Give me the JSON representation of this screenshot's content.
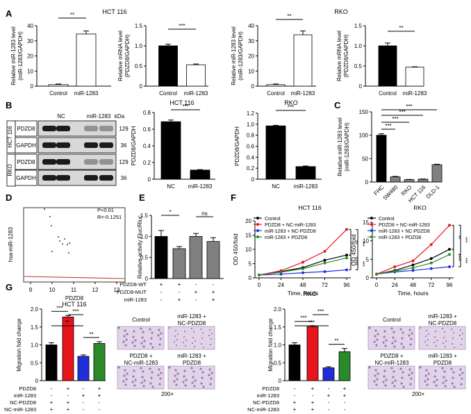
{
  "panel_letters": [
    "A",
    "B",
    "C",
    "D",
    "E",
    "F",
    "G"
  ],
  "colors": {
    "bar_black": "#000000",
    "bar_white": "#ffffff",
    "bar_gray": "#808080",
    "bar_red": "#e8141c",
    "bar_blue": "#1f2fdc",
    "bar_green": "#2a8a2a",
    "line_black": "#000000",
    "line_red": "#e8141c",
    "line_blue": "#1f2fdc",
    "line_green": "#2a8a2a",
    "image_purple": "#6a3f8f"
  },
  "chart_data": [
    {
      "id": "A1",
      "type": "bar",
      "title": "HCT 116",
      "categories": [
        "Control",
        "miR-1283"
      ],
      "values": [
        1.0,
        34.5
      ],
      "errors": [
        0.4,
        2.0
      ],
      "ylabel": "Relative miR-1283 level (miR-1283/GAPDH)",
      "ylim": [
        0,
        40
      ],
      "yticks": [
        "0",
        "10",
        "20",
        "30",
        "40"
      ],
      "fills": [
        "white",
        "white"
      ],
      "sig": [
        "**"
      ]
    },
    {
      "id": "A2",
      "type": "bar",
      "categories": [
        "Control",
        "miR-1283"
      ],
      "values": [
        1.0,
        0.53
      ],
      "errors": [
        0.04,
        0.02
      ],
      "ylabel": "Relative mRNA level (PDZD8/GAPDH)",
      "ylim": [
        0,
        1.5
      ],
      "yticks": [
        "0",
        "0.5",
        "1.0",
        "1.5"
      ],
      "fills": [
        "black",
        "white"
      ],
      "sig": [
        "***"
      ]
    },
    {
      "id": "A3",
      "type": "bar",
      "title": "RKO",
      "categories": [
        "Control",
        "miR-1283"
      ],
      "values": [
        1.0,
        34.0
      ],
      "errors": [
        0.4,
        2.5
      ],
      "ylabel": "Relative miR-1283 level (miR-1283/GAPDH)",
      "ylim": [
        0,
        40
      ],
      "yticks": [
        "0",
        "10",
        "20",
        "30",
        "40"
      ],
      "fills": [
        "white",
        "white"
      ],
      "sig": [
        "**"
      ]
    },
    {
      "id": "A4",
      "type": "bar",
      "categories": [
        "Control",
        "miR-1283"
      ],
      "values": [
        1.0,
        0.47
      ],
      "errors": [
        0.07,
        0.01
      ],
      "ylabel": "Relative mRNA level (PDZD8/GAPDH)",
      "ylim": [
        0,
        1.5
      ],
      "yticks": [
        "0",
        "0.5",
        "1.0",
        "1.5"
      ],
      "fills": [
        "black",
        "white"
      ],
      "sig": [
        "**"
      ]
    },
    {
      "id": "B1",
      "type": "bar",
      "title": "HCT 116",
      "categories": [
        "NC",
        "miR-1283"
      ],
      "values": [
        0.69,
        0.11
      ],
      "errors": [
        0.02,
        0.005
      ],
      "ylabel": "PDZD8/GAPDH",
      "ylim": [
        0,
        0.8
      ],
      "yticks": [
        "0",
        "0.2",
        "0.4",
        "0.6",
        "0.8"
      ],
      "fills": [
        "black",
        "black"
      ],
      "sig": [
        "***"
      ]
    },
    {
      "id": "B2",
      "type": "bar",
      "title": "RKO",
      "categories": [
        "NC",
        "miR-1283"
      ],
      "values": [
        0.97,
        0.23
      ],
      "errors": [
        0.01,
        0.01
      ],
      "ylabel": "PDZD8/GAPDH",
      "ylim": [
        0,
        1.2
      ],
      "yticks": [
        "0",
        "0.2",
        "0.4",
        "0.6",
        "0.8",
        "1.0",
        "1.2"
      ],
      "fills": [
        "black",
        "black"
      ],
      "sig": [
        "***"
      ]
    },
    {
      "id": "C",
      "type": "bar",
      "categories": [
        "FHC",
        "SW480",
        "RKO",
        "HCT 116",
        "DLD-1"
      ],
      "values": [
        100,
        11,
        5,
        6,
        37
      ],
      "errors": [
        3,
        1,
        0.5,
        0.5,
        1
      ],
      "ylabel": "Relative miR-1283 level (miR-1283/GAPDH)",
      "ylim": [
        0,
        150
      ],
      "yticks": [
        "0",
        "50",
        "100",
        "150"
      ],
      "fills": [
        "black",
        "gray",
        "gray",
        "gray",
        "gray"
      ],
      "sig": [
        "***",
        "***",
        "***",
        "***"
      ]
    },
    {
      "id": "D",
      "type": "scatter",
      "ylabel": "hsa-miR-1283",
      "xlabel": "PDZD8",
      "xticks": [
        "9",
        "10",
        "11",
        "12",
        "13"
      ],
      "annotations": [
        "P<0.01",
        "R=-0.1251"
      ]
    },
    {
      "id": "E",
      "type": "bar",
      "ylabel": "Relative activity Fluc/Rluc",
      "ylim": [
        0,
        1.5
      ],
      "yticks": [
        "0",
        "0.5",
        "1.0",
        "1.5"
      ],
      "values": [
        1.0,
        0.71,
        1.0,
        0.88
      ],
      "errors": [
        0.14,
        0.05,
        0.07,
        0.09
      ],
      "fills": [
        "black",
        "gray",
        "gray",
        "gray"
      ],
      "sig": [
        "*",
        "ns"
      ],
      "rows": [
        {
          "label": "PDZD8-WT",
          "marks": [
            "+",
            "+",
            "-",
            "-"
          ]
        },
        {
          "label": "PDZD8-MUT",
          "marks": [
            "-",
            "-",
            "+",
            "+"
          ]
        },
        {
          "label": "miR-1283",
          "marks": [
            "-",
            "+",
            "-",
            "+"
          ]
        }
      ]
    },
    {
      "id": "F1",
      "type": "line",
      "title": "HCT 116",
      "xlabel": "Time, hours",
      "ylabel": "OD 450/fold",
      "x": [
        0,
        24,
        48,
        72,
        96
      ],
      "ylim": [
        0,
        20
      ],
      "yticks": [
        "0",
        "5",
        "10",
        "15",
        "20"
      ],
      "series": [
        {
          "name": "Control",
          "values": [
            1,
            2.2,
            3.6,
            6.2,
            8.0
          ]
        },
        {
          "name": "PDZD8 + NC-miR-1283",
          "values": [
            1,
            2.5,
            5.5,
            9.3,
            17.0
          ]
        },
        {
          "name": "miR-1283 + NC-PDZD8",
          "values": [
            1,
            1.3,
            1.8,
            2.2,
            2.8
          ]
        },
        {
          "name": "miR-1283 + PDZD8",
          "values": [
            1,
            2.0,
            3.2,
            5.2,
            7.0
          ]
        }
      ],
      "sig": [
        "**",
        "***",
        "***",
        "***"
      ]
    },
    {
      "id": "F2",
      "type": "line",
      "title": "RKO",
      "xlabel": "Time, hours",
      "ylabel": "OD 450/fold",
      "x": [
        0,
        24,
        48,
        72,
        96
      ],
      "ylim": [
        0,
        15
      ],
      "yticks": [
        "0",
        "5",
        "10",
        "15"
      ],
      "series": [
        {
          "name": "Control",
          "values": [
            1,
            2.0,
            3.5,
            5.2,
            7.7
          ]
        },
        {
          "name": "PDZD8 + NC-miR-1283",
          "values": [
            1,
            3.0,
            4.6,
            9.0,
            14.2
          ]
        },
        {
          "name": "miR-1283 + NC-PDZD8",
          "values": [
            1,
            1.6,
            2.0,
            2.5,
            3.0
          ]
        },
        {
          "name": "miR-1283 + PDZD8",
          "values": [
            1,
            1.8,
            2.7,
            4.0,
            6.3
          ]
        }
      ],
      "sig": [
        "**",
        "***",
        "***",
        "***"
      ]
    },
    {
      "id": "G1",
      "type": "bar",
      "title": "HCT 116",
      "ylabel": "Migration fold change",
      "ylim": [
        0,
        2.0
      ],
      "yticks": [
        "0",
        "0.5",
        "1.0",
        "1.5",
        "2.0"
      ],
      "values": [
        1.0,
        1.78,
        0.68,
        1.04
      ],
      "errors": [
        0.06,
        0.04,
        0.04,
        0.05
      ],
      "fills": [
        "black",
        "red",
        "blue",
        "green"
      ],
      "sig": [
        "***",
        "**",
        "***",
        "**"
      ],
      "rows": [
        {
          "label": "PDZD8",
          "marks": [
            "-",
            "+",
            "-",
            "+"
          ]
        },
        {
          "label": "miR-1283",
          "marks": [
            "-",
            "-",
            "+",
            "+"
          ]
        },
        {
          "label": "NC-PDZD8",
          "marks": [
            "+",
            "+",
            "-",
            "-"
          ]
        },
        {
          "label": "NC-miR-1283",
          "marks": [
            "+",
            "+",
            "-",
            "-"
          ]
        }
      ]
    },
    {
      "id": "G2",
      "type": "bar",
      "title": "RKO",
      "ylabel": "Migration fold change",
      "ylim": [
        0,
        2.0
      ],
      "yticks": [
        "0",
        "0.5",
        "1.0",
        "1.5",
        "2.0"
      ],
      "values": [
        1.0,
        1.51,
        0.36,
        0.81
      ],
      "errors": [
        0.06,
        0.03,
        0.03,
        0.09
      ],
      "fills": [
        "black",
        "red",
        "blue",
        "green"
      ],
      "sig": [
        "***",
        "***",
        "***",
        "**"
      ],
      "rows": [
        {
          "label": "PDZD8",
          "marks": [
            "-",
            "+",
            "-",
            "+"
          ]
        },
        {
          "label": "miR-1283",
          "marks": [
            "-",
            "-",
            "+",
            "+"
          ]
        },
        {
          "label": "NC-PDZD8",
          "marks": [
            "+",
            "+",
            "-",
            "-"
          ]
        },
        {
          "label": "NC-miR-1283",
          "marks": [
            "+",
            "+",
            "-",
            "-"
          ]
        }
      ]
    }
  ],
  "blot": {
    "cols": [
      "NC",
      "miR-1283",
      "kDa"
    ],
    "rows": [
      {
        "group": "HCT 116",
        "label": "PDZD8",
        "kda": "129"
      },
      {
        "group": "HCT 116",
        "label": "GAPDH",
        "kda": "36"
      },
      {
        "group": "RKO",
        "label": "PDZD8",
        "kda": "129"
      },
      {
        "group": "RKO",
        "label": "GAPDH",
        "kda": "36"
      }
    ]
  },
  "micro": {
    "hct": {
      "labels": [
        "Control",
        "miR-1283 +",
        "NC-PDZD8",
        "PDZD8 +",
        "NC-miR-1283",
        "miR-1283 +",
        "PDZD8"
      ],
      "mag": "200×"
    },
    "rko": {
      "labels": [
        "Control",
        "miR-1283 +",
        "NC-PDZD8",
        "PDZD8 +",
        "NC-miR-1283",
        "miR-1283 +",
        "PDZD8"
      ],
      "mag": "200×"
    }
  }
}
